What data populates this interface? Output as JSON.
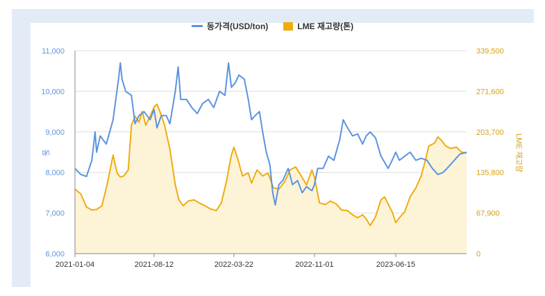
{
  "chart_data": {
    "type": "line",
    "title": "",
    "legend": [
      {
        "name": "동가격(USD/ton)",
        "color": "#5b93e0",
        "kind": "line"
      },
      {
        "name": "LME 재고량(톤)",
        "color": "#f0ab10",
        "kind": "area"
      }
    ],
    "x_ticks": [
      "2021-01-04",
      "2021-08-12",
      "2022-03-22",
      "2022-11-01",
      "2023-06-15"
    ],
    "x_range": [
      "2021-01-04",
      "2023-12-29"
    ],
    "y_left": {
      "label": "동",
      "ticks": [
        "11,000",
        "10,000",
        "9,000",
        "8,000",
        "7,000",
        "6,000"
      ],
      "range": [
        6000,
        11000
      ],
      "color": "#5b93e0"
    },
    "y_right": {
      "label": "LME 재고량",
      "ticks": [
        "339,500",
        "271,600",
        "203,700",
        "135,800",
        "67,900",
        "0"
      ],
      "range": [
        0,
        339500
      ],
      "color": "#d4a017"
    },
    "series": [
      {
        "name": "동가격(USD/ton)",
        "axis": "left",
        "points": [
          [
            "2021-01-04",
            8100
          ],
          [
            "2021-01-20",
            7950
          ],
          [
            "2021-02-05",
            7900
          ],
          [
            "2021-02-20",
            8300
          ],
          [
            "2021-03-01",
            9000
          ],
          [
            "2021-03-05",
            8500
          ],
          [
            "2021-03-15",
            8900
          ],
          [
            "2021-04-01",
            8700
          ],
          [
            "2021-04-20",
            9300
          ],
          [
            "2021-05-05",
            10300
          ],
          [
            "2021-05-10",
            10700
          ],
          [
            "2021-05-15",
            10300
          ],
          [
            "2021-05-25",
            10000
          ],
          [
            "2021-06-10",
            9900
          ],
          [
            "2021-06-20",
            9200
          ],
          [
            "2021-07-01",
            9400
          ],
          [
            "2021-07-15",
            9500
          ],
          [
            "2021-08-01",
            9300
          ],
          [
            "2021-08-12",
            9550
          ],
          [
            "2021-08-20",
            9100
          ],
          [
            "2021-09-01",
            9400
          ],
          [
            "2021-09-15",
            9400
          ],
          [
            "2021-09-25",
            9200
          ],
          [
            "2021-10-10",
            10000
          ],
          [
            "2021-10-18",
            10600
          ],
          [
            "2021-10-25",
            9800
          ],
          [
            "2021-11-10",
            9800
          ],
          [
            "2021-11-25",
            9600
          ],
          [
            "2021-12-10",
            9450
          ],
          [
            "2021-12-25",
            9700
          ],
          [
            "2022-01-10",
            9800
          ],
          [
            "2022-01-25",
            9600
          ],
          [
            "2022-02-10",
            10000
          ],
          [
            "2022-02-25",
            9900
          ],
          [
            "2022-03-07",
            10700
          ],
          [
            "2022-03-15",
            10100
          ],
          [
            "2022-03-25",
            10200
          ],
          [
            "2022-04-05",
            10400
          ],
          [
            "2022-04-20",
            10300
          ],
          [
            "2022-05-01",
            9800
          ],
          [
            "2022-05-10",
            9300
          ],
          [
            "2022-05-20",
            9400
          ],
          [
            "2022-06-01",
            9500
          ],
          [
            "2022-06-10",
            9000
          ],
          [
            "2022-06-20",
            8500
          ],
          [
            "2022-06-30",
            8200
          ],
          [
            "2022-07-08",
            7500
          ],
          [
            "2022-07-15",
            7200
          ],
          [
            "2022-07-25",
            7700
          ],
          [
            "2022-08-05",
            7800
          ],
          [
            "2022-08-20",
            8100
          ],
          [
            "2022-09-01",
            7700
          ],
          [
            "2022-09-15",
            7800
          ],
          [
            "2022-09-28",
            7500
          ],
          [
            "2022-10-10",
            7650
          ],
          [
            "2022-10-25",
            7550
          ],
          [
            "2022-11-01",
            7700
          ],
          [
            "2022-11-10",
            8100
          ],
          [
            "2022-11-25",
            8100
          ],
          [
            "2022-12-10",
            8400
          ],
          [
            "2022-12-25",
            8300
          ],
          [
            "2023-01-10",
            8800
          ],
          [
            "2023-01-20",
            9300
          ],
          [
            "2023-02-01",
            9100
          ],
          [
            "2023-02-15",
            8900
          ],
          [
            "2023-03-01",
            8950
          ],
          [
            "2023-03-15",
            8700
          ],
          [
            "2023-03-25",
            8900
          ],
          [
            "2023-04-05",
            9000
          ],
          [
            "2023-04-20",
            8850
          ],
          [
            "2023-05-05",
            8400
          ],
          [
            "2023-05-25",
            8100
          ],
          [
            "2023-06-05",
            8300
          ],
          [
            "2023-06-15",
            8500
          ],
          [
            "2023-06-25",
            8300
          ],
          [
            "2023-07-10",
            8400
          ],
          [
            "2023-07-25",
            8500
          ],
          [
            "2023-08-10",
            8300
          ],
          [
            "2023-08-25",
            8350
          ],
          [
            "2023-09-10",
            8300
          ],
          [
            "2023-09-25",
            8100
          ],
          [
            "2023-10-10",
            7950
          ],
          [
            "2023-10-25",
            8000
          ],
          [
            "2023-11-10",
            8150
          ],
          [
            "2023-11-25",
            8300
          ],
          [
            "2023-12-10",
            8450
          ],
          [
            "2023-12-29",
            8500
          ]
        ]
      },
      {
        "name": "LME 재고량(톤)",
        "axis": "right",
        "points": [
          [
            "2021-01-04",
            108000
          ],
          [
            "2021-01-20",
            100000
          ],
          [
            "2021-02-05",
            78000
          ],
          [
            "2021-02-20",
            73000
          ],
          [
            "2021-03-05",
            74000
          ],
          [
            "2021-03-20",
            80000
          ],
          [
            "2021-04-05",
            120000
          ],
          [
            "2021-04-20",
            165000
          ],
          [
            "2021-05-01",
            135000
          ],
          [
            "2021-05-10",
            128000
          ],
          [
            "2021-05-20",
            130000
          ],
          [
            "2021-06-01",
            140000
          ],
          [
            "2021-06-10",
            215000
          ],
          [
            "2021-06-20",
            230000
          ],
          [
            "2021-07-01",
            220000
          ],
          [
            "2021-07-10",
            238000
          ],
          [
            "2021-07-20",
            215000
          ],
          [
            "2021-08-01",
            230000
          ],
          [
            "2021-08-12",
            245000
          ],
          [
            "2021-08-20",
            250000
          ],
          [
            "2021-09-01",
            232000
          ],
          [
            "2021-09-10",
            215000
          ],
          [
            "2021-09-25",
            175000
          ],
          [
            "2021-10-10",
            115000
          ],
          [
            "2021-10-20",
            90000
          ],
          [
            "2021-11-01",
            80000
          ],
          [
            "2021-11-15",
            88000
          ],
          [
            "2021-12-01",
            90000
          ],
          [
            "2021-12-15",
            85000
          ],
          [
            "2022-01-01",
            80000
          ],
          [
            "2022-01-15",
            75000
          ],
          [
            "2022-02-01",
            72000
          ],
          [
            "2022-02-15",
            85000
          ],
          [
            "2022-03-01",
            120000
          ],
          [
            "2022-03-15",
            165000
          ],
          [
            "2022-03-22",
            178000
          ],
          [
            "2022-04-01",
            160000
          ],
          [
            "2022-04-15",
            130000
          ],
          [
            "2022-05-01",
            135000
          ],
          [
            "2022-05-10",
            118000
          ],
          [
            "2022-05-25",
            140000
          ],
          [
            "2022-06-10",
            130000
          ],
          [
            "2022-06-25",
            135000
          ],
          [
            "2022-07-10",
            110000
          ],
          [
            "2022-07-25",
            108000
          ],
          [
            "2022-08-10",
            120000
          ],
          [
            "2022-08-25",
            140000
          ],
          [
            "2022-09-10",
            145000
          ],
          [
            "2022-09-25",
            130000
          ],
          [
            "2022-10-10",
            115000
          ],
          [
            "2022-10-25",
            140000
          ],
          [
            "2022-11-01",
            128000
          ],
          [
            "2022-11-15",
            85000
          ],
          [
            "2022-12-01",
            82000
          ],
          [
            "2022-12-15",
            88000
          ],
          [
            "2023-01-01",
            83000
          ],
          [
            "2023-01-15",
            73000
          ],
          [
            "2023-02-01",
            72000
          ],
          [
            "2023-02-15",
            65000
          ],
          [
            "2023-03-01",
            60000
          ],
          [
            "2023-03-15",
            65000
          ],
          [
            "2023-03-25",
            58000
          ],
          [
            "2023-04-05",
            47000
          ],
          [
            "2023-04-20",
            62000
          ],
          [
            "2023-05-05",
            90000
          ],
          [
            "2023-05-15",
            95000
          ],
          [
            "2023-05-25",
            83000
          ],
          [
            "2023-06-05",
            70000
          ],
          [
            "2023-06-15",
            52000
          ],
          [
            "2023-06-25",
            60000
          ],
          [
            "2023-07-10",
            70000
          ],
          [
            "2023-07-25",
            95000
          ],
          [
            "2023-08-10",
            110000
          ],
          [
            "2023-08-25",
            130000
          ],
          [
            "2023-09-05",
            155000
          ],
          [
            "2023-09-15",
            180000
          ],
          [
            "2023-10-01",
            185000
          ],
          [
            "2023-10-10",
            195000
          ],
          [
            "2023-10-20",
            190000
          ],
          [
            "2023-11-01",
            180000
          ],
          [
            "2023-11-15",
            176000
          ],
          [
            "2023-12-01",
            178000
          ],
          [
            "2023-12-15",
            170000
          ],
          [
            "2023-12-29",
            168000
          ]
        ]
      }
    ]
  }
}
